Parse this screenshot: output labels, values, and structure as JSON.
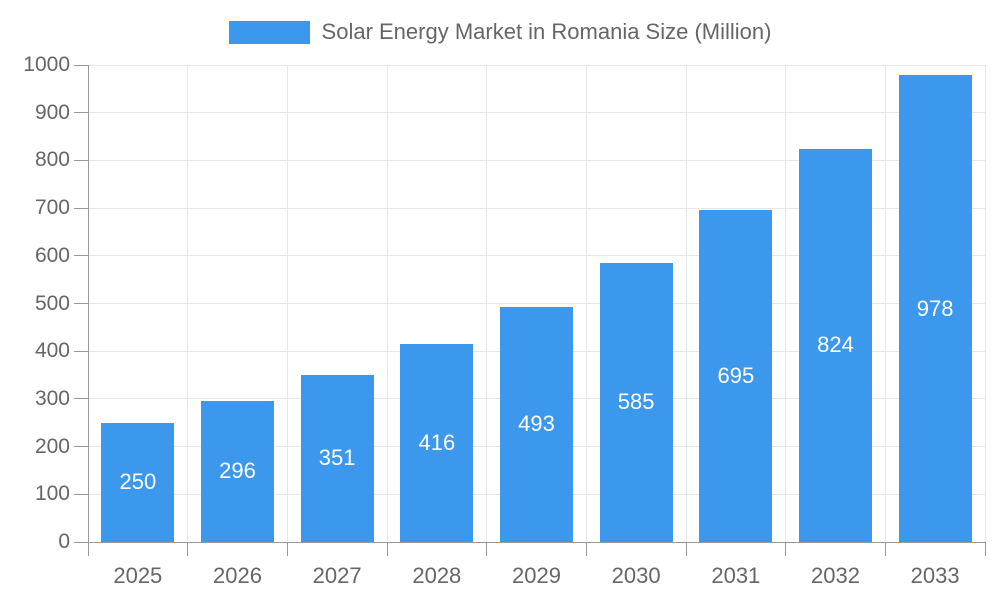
{
  "legend": {
    "label": "Solar Energy Market in Romania Size (Million)",
    "swatch_color": "#3b98ec"
  },
  "chart_data": {
    "type": "bar",
    "title": "Solar Energy Market in Romania Size (Million)",
    "series_name": "Solar Energy Market in Romania Size (Million)",
    "categories": [
      "2025",
      "2026",
      "2027",
      "2028",
      "2029",
      "2030",
      "2031",
      "2032",
      "2033"
    ],
    "values": [
      250,
      296,
      351,
      416,
      493,
      585,
      695,
      824,
      978
    ],
    "value_labels": [
      "250",
      "296",
      "351",
      "416",
      "493",
      "585",
      "695",
      "824",
      "978"
    ],
    "xlabel": "",
    "ylabel": "",
    "ylim": [
      0,
      1000
    ],
    "ytick_interval": 100,
    "ytick_labels": [
      "0",
      "100",
      "200",
      "300",
      "400",
      "500",
      "600",
      "700",
      "800",
      "900",
      "1000"
    ],
    "grid": "horizontal and vertical gridlines on",
    "legend_position": "top-center",
    "value_label_position": "inside-center",
    "colors": {
      "bar": "#3b98ec",
      "grid": "#e6e6e6",
      "axis": "#999999",
      "axis_label": "#666666",
      "value_label": "#ffffff"
    }
  }
}
